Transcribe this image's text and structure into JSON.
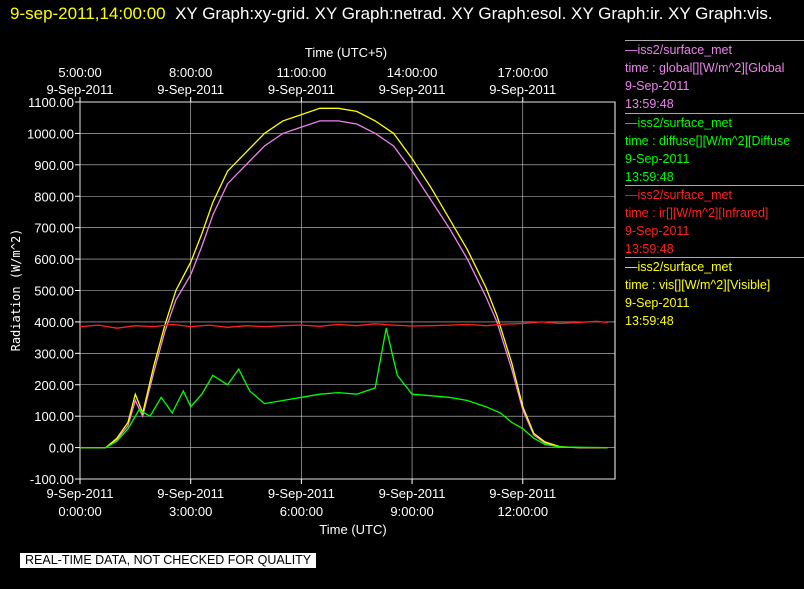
{
  "header": {
    "timestamp": "9-sep-2011,14:00:00",
    "graphs": "XY Graph:xy-grid.  XY Graph:netrad.  XY Graph:esol.  XY Graph:ir.  XY Graph:vis."
  },
  "footer_note": "REAL-TIME DATA, NOT CHECKED FOR QUALITY",
  "legend": [
    {
      "source": "—iss2/surface_met",
      "var": "time : global[][W/m^2][Global",
      "date": "9-Sep-2011",
      "time": "13:59:48",
      "color": "#ee82ee"
    },
    {
      "source": "—iss2/surface_met",
      "var": "time : diffuse[][W/m^2][Diffuse",
      "date": "9-Sep-2011",
      "time": "13:59:48",
      "color": "#00ff00"
    },
    {
      "source": "—iss2/surface_met",
      "var": "time : ir[][W/m^2][Infrared]",
      "date": "9-Sep-2011",
      "time": "13:59:48",
      "color": "#ff2020"
    },
    {
      "source": "—iss2/surface_met",
      "var": "time : vis[][W/m^2][Visible]",
      "date": "9-Sep-2011",
      "time": "13:59:48",
      "color": "#ffff00"
    }
  ],
  "chart_data": {
    "type": "line",
    "xlabel": "Time (UTC)",
    "xlabel_top": "Time (UTC+5)",
    "ylabel": "Radiation (W/m^2)",
    "xlim": [
      0,
      14.5
    ],
    "ylim": [
      -100,
      1100
    ],
    "yticks": [
      "-100.00",
      "0.00",
      "100.00",
      "200.00",
      "300.00",
      "400.00",
      "500.00",
      "600.00",
      "700.00",
      "800.00",
      "900.00",
      "1000.00",
      "1100.00"
    ],
    "ytick_values": [
      -100,
      0,
      100,
      200,
      300,
      400,
      500,
      600,
      700,
      800,
      900,
      1000,
      1100
    ],
    "xticks_bottom": [
      {
        "x": 0,
        "date": "9-Sep-2011",
        "time": "0:00:00"
      },
      {
        "x": 3,
        "date": "9-Sep-2011",
        "time": "3:00:00"
      },
      {
        "x": 6,
        "date": "9-Sep-2011",
        "time": "6:00:00"
      },
      {
        "x": 9,
        "date": "9-Sep-2011",
        "time": "9:00:00"
      },
      {
        "x": 12,
        "date": "9-Sep-2011",
        "time": "12:00:00"
      }
    ],
    "xticks_top": [
      {
        "x": 0,
        "time": "5:00:00",
        "date": "9-Sep-2011"
      },
      {
        "x": 3,
        "time": "8:00:00",
        "date": "9-Sep-2011"
      },
      {
        "x": 6,
        "time": "11:00:00",
        "date": "9-Sep-2011"
      },
      {
        "x": 9,
        "time": "14:00:00",
        "date": "9-Sep-2011"
      },
      {
        "x": 12,
        "time": "17:00:00",
        "date": "9-Sep-2011"
      }
    ],
    "grid": true,
    "legend_position": "right",
    "series": [
      {
        "name": "global",
        "color": "#ee82ee",
        "x": [
          0,
          0.7,
          1,
          1.3,
          1.5,
          1.7,
          2,
          2.3,
          2.6,
          3,
          3.3,
          3.6,
          4,
          4.5,
          5,
          5.5,
          6,
          6.5,
          7,
          7.5,
          8,
          8.5,
          9,
          9.5,
          10,
          10.5,
          11,
          11.3,
          11.7,
          12,
          12.3,
          12.6,
          13,
          13.5,
          14.3
        ],
        "y": [
          0,
          0,
          25,
          70,
          150,
          100,
          240,
          370,
          470,
          550,
          640,
          740,
          840,
          900,
          960,
          1000,
          1020,
          1040,
          1040,
          1030,
          1000,
          960,
          880,
          790,
          700,
          600,
          480,
          400,
          250,
          120,
          40,
          15,
          2,
          0,
          0
        ]
      },
      {
        "name": "diffuse",
        "color": "#00ff00",
        "x": [
          0,
          0.7,
          1,
          1.3,
          1.6,
          1.9,
          2.2,
          2.5,
          2.8,
          3,
          3.3,
          3.6,
          4,
          4.3,
          4.6,
          5,
          5.5,
          6,
          6.5,
          7,
          7.5,
          8,
          8.3,
          8.6,
          9,
          9.5,
          10,
          10.5,
          11,
          11.4,
          11.7,
          12,
          12.3,
          12.6,
          13,
          14.3
        ],
        "y": [
          0,
          0,
          20,
          60,
          120,
          100,
          160,
          110,
          180,
          130,
          170,
          230,
          200,
          250,
          180,
          140,
          150,
          160,
          170,
          175,
          170,
          190,
          380,
          230,
          170,
          165,
          160,
          150,
          130,
          110,
          80,
          60,
          30,
          10,
          2,
          0
        ]
      },
      {
        "name": "ir",
        "color": "#ff2020",
        "x": [
          0,
          0.5,
          1,
          1.5,
          2,
          2.5,
          3,
          3.5,
          4,
          4.5,
          5,
          5.5,
          6,
          6.5,
          7,
          7.5,
          8,
          8.5,
          9,
          9.5,
          10,
          10.5,
          11,
          11.5,
          12,
          12.5,
          13,
          13.5,
          14,
          14.3
        ],
        "y": [
          385,
          390,
          380,
          388,
          385,
          392,
          385,
          390,
          383,
          388,
          385,
          388,
          390,
          386,
          392,
          388,
          394,
          390,
          387,
          388,
          390,
          392,
          388,
          393,
          395,
          400,
          395,
          398,
          402,
          398
        ]
      },
      {
        "name": "vis",
        "color": "#ffff00",
        "x": [
          0,
          0.7,
          1,
          1.3,
          1.5,
          1.7,
          2,
          2.3,
          2.6,
          3,
          3.3,
          3.6,
          4,
          4.5,
          5,
          5.5,
          6,
          6.5,
          7,
          7.5,
          8,
          8.5,
          9,
          9.5,
          10,
          10.5,
          11,
          11.3,
          11.7,
          12,
          12.3,
          12.6,
          13,
          13.5,
          14.3
        ],
        "y": [
          0,
          0,
          30,
          80,
          170,
          110,
          260,
          390,
          500,
          590,
          680,
          780,
          880,
          940,
          1000,
          1040,
          1060,
          1080,
          1080,
          1070,
          1040,
          1000,
          920,
          830,
          730,
          630,
          510,
          420,
          270,
          130,
          45,
          18,
          3,
          0,
          0
        ]
      }
    ]
  }
}
